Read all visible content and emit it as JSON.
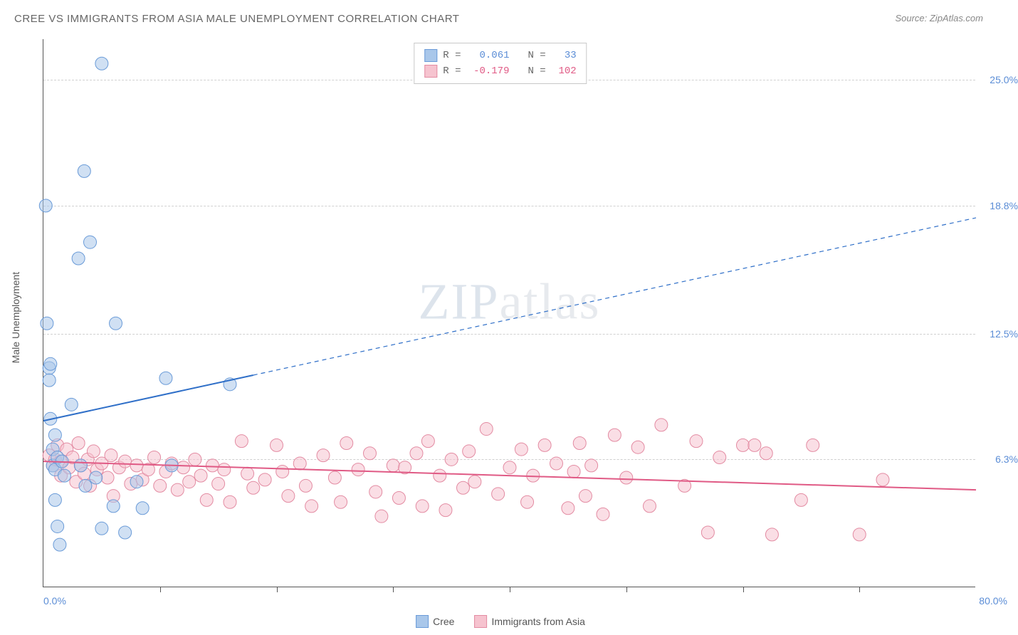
{
  "title": "CREE VS IMMIGRANTS FROM ASIA MALE UNEMPLOYMENT CORRELATION CHART",
  "source_prefix": "Source: ",
  "source_name": "ZipAtlas.com",
  "y_axis_title": "Male Unemployment",
  "watermark_zip": "ZIP",
  "watermark_atlas": "atlas",
  "colors": {
    "series_a_fill": "#a9c7ea",
    "series_a_stroke": "#6a9bd8",
    "series_a_line": "#2f6fc8",
    "series_b_fill": "#f6c3cf",
    "series_b_stroke": "#e38ba2",
    "series_b_line": "#e05a85",
    "axis_text_blue": "#5b8dd6",
    "axis_text_pink": "#e05a85",
    "grid": "#d8d8d8",
    "title_color": "#666666"
  },
  "stats": {
    "rows": [
      {
        "swatch_fill": "#a9c7ea",
        "swatch_stroke": "#6a9bd8",
        "r_label": "R =",
        "r_value": "0.061",
        "r_color": "#5b8dd6",
        "n_label": "N =",
        "n_value": "33",
        "n_color": "#5b8dd6"
      },
      {
        "swatch_fill": "#f6c3cf",
        "swatch_stroke": "#e38ba2",
        "r_label": "R =",
        "r_value": "-0.179",
        "r_color": "#e05a85",
        "n_label": "N =",
        "n_value": "102",
        "n_color": "#e05a85"
      }
    ]
  },
  "legend": {
    "items": [
      {
        "label": "Cree",
        "fill": "#a9c7ea",
        "stroke": "#6a9bd8"
      },
      {
        "label": "Immigrants from Asia",
        "fill": "#f6c3cf",
        "stroke": "#e38ba2"
      }
    ]
  },
  "chart": {
    "type": "scatter",
    "xlim": [
      0,
      80
    ],
    "ylim": [
      0,
      27
    ],
    "x_min_label": "0.0%",
    "x_max_label": "80.0%",
    "y_ticks": [
      {
        "value": 6.3,
        "label": "6.3%",
        "color": "#5b8dd6"
      },
      {
        "value": 12.5,
        "label": "12.5%",
        "color": "#5b8dd6"
      },
      {
        "value": 18.8,
        "label": "18.8%",
        "color": "#5b8dd6"
      },
      {
        "value": 25.0,
        "label": "25.0%",
        "color": "#5b8dd6"
      }
    ],
    "x_tick_positions": [
      10,
      20,
      30,
      40,
      50,
      60,
      70
    ],
    "marker_radius": 9,
    "marker_opacity": 0.55,
    "line_width": 2,
    "series_a": {
      "name": "Cree",
      "points": [
        [
          0.2,
          18.8
        ],
        [
          0.3,
          13.0
        ],
        [
          0.5,
          10.8
        ],
        [
          0.5,
          10.2
        ],
        [
          0.6,
          11.0
        ],
        [
          0.6,
          8.3
        ],
        [
          0.8,
          6.8
        ],
        [
          0.8,
          6.0
        ],
        [
          1.0,
          7.5
        ],
        [
          1.0,
          5.8
        ],
        [
          1.0,
          4.3
        ],
        [
          1.2,
          3.0
        ],
        [
          1.2,
          6.4
        ],
        [
          1.4,
          2.1
        ],
        [
          1.6,
          6.2
        ],
        [
          1.8,
          5.5
        ],
        [
          2.4,
          9.0
        ],
        [
          3.0,
          16.2
        ],
        [
          3.2,
          6.0
        ],
        [
          3.5,
          20.5
        ],
        [
          3.6,
          5.0
        ],
        [
          4.0,
          17.0
        ],
        [
          4.5,
          5.4
        ],
        [
          5.0,
          2.9
        ],
        [
          5.0,
          25.8
        ],
        [
          6.0,
          4.0
        ],
        [
          6.2,
          13.0
        ],
        [
          7.0,
          2.7
        ],
        [
          8.0,
          5.2
        ],
        [
          8.5,
          3.9
        ],
        [
          10.5,
          10.3
        ],
        [
          11.0,
          6.0
        ],
        [
          16.0,
          10.0
        ]
      ],
      "trend": {
        "x1": 0,
        "y1": 8.2,
        "x2": 80,
        "y2": 18.2,
        "solid_until_x": 18
      }
    },
    "series_b": {
      "name": "Immigrants from Asia",
      "points": [
        [
          0.5,
          6.5
        ],
        [
          0.8,
          6.0
        ],
        [
          1.0,
          6.3
        ],
        [
          1.2,
          7.0
        ],
        [
          1.5,
          6.2
        ],
        [
          1.5,
          5.5
        ],
        [
          2.0,
          6.8
        ],
        [
          2.2,
          5.9
        ],
        [
          2.5,
          6.4
        ],
        [
          2.8,
          5.2
        ],
        [
          3.0,
          7.1
        ],
        [
          3.2,
          6.0
        ],
        [
          3.5,
          5.6
        ],
        [
          3.8,
          6.3
        ],
        [
          4.0,
          5.0
        ],
        [
          4.3,
          6.7
        ],
        [
          4.6,
          5.8
        ],
        [
          5.0,
          6.1
        ],
        [
          5.5,
          5.4
        ],
        [
          5.8,
          6.5
        ],
        [
          6.0,
          4.5
        ],
        [
          6.5,
          5.9
        ],
        [
          7.0,
          6.2
        ],
        [
          7.5,
          5.1
        ],
        [
          8.0,
          6.0
        ],
        [
          8.5,
          5.3
        ],
        [
          9.0,
          5.8
        ],
        [
          9.5,
          6.4
        ],
        [
          10.0,
          5.0
        ],
        [
          10.5,
          5.7
        ],
        [
          11.0,
          6.1
        ],
        [
          11.5,
          4.8
        ],
        [
          12.0,
          5.9
        ],
        [
          12.5,
          5.2
        ],
        [
          13.0,
          6.3
        ],
        [
          13.5,
          5.5
        ],
        [
          14.0,
          4.3
        ],
        [
          14.5,
          6.0
        ],
        [
          15.0,
          5.1
        ],
        [
          15.5,
          5.8
        ],
        [
          16.0,
          4.2
        ],
        [
          17.0,
          7.2
        ],
        [
          17.5,
          5.6
        ],
        [
          18.0,
          4.9
        ],
        [
          19.0,
          5.3
        ],
        [
          20.0,
          7.0
        ],
        [
          20.5,
          5.7
        ],
        [
          21.0,
          4.5
        ],
        [
          22.0,
          6.1
        ],
        [
          22.5,
          5.0
        ],
        [
          23.0,
          4.0
        ],
        [
          24.0,
          6.5
        ],
        [
          25.0,
          5.4
        ],
        [
          25.5,
          4.2
        ],
        [
          26.0,
          7.1
        ],
        [
          27.0,
          5.8
        ],
        [
          28.0,
          6.6
        ],
        [
          28.5,
          4.7
        ],
        [
          29.0,
          3.5
        ],
        [
          30.0,
          6.0
        ],
        [
          30.5,
          4.4
        ],
        [
          31.0,
          5.9
        ],
        [
          32.0,
          6.6
        ],
        [
          32.5,
          4.0
        ],
        [
          33.0,
          7.2
        ],
        [
          34.0,
          5.5
        ],
        [
          34.5,
          3.8
        ],
        [
          35.0,
          6.3
        ],
        [
          36.0,
          4.9
        ],
        [
          36.5,
          6.7
        ],
        [
          37.0,
          5.2
        ],
        [
          38.0,
          7.8
        ],
        [
          39.0,
          4.6
        ],
        [
          40.0,
          5.9
        ],
        [
          41.0,
          6.8
        ],
        [
          41.5,
          4.2
        ],
        [
          42.0,
          5.5
        ],
        [
          43.0,
          7.0
        ],
        [
          44.0,
          6.1
        ],
        [
          45.0,
          3.9
        ],
        [
          45.5,
          5.7
        ],
        [
          46.0,
          7.1
        ],
        [
          46.5,
          4.5
        ],
        [
          47.0,
          6.0
        ],
        [
          48.0,
          3.6
        ],
        [
          49.0,
          7.5
        ],
        [
          50.0,
          5.4
        ],
        [
          51.0,
          6.9
        ],
        [
          52.0,
          4.0
        ],
        [
          53.0,
          8.0
        ],
        [
          55.0,
          5.0
        ],
        [
          56.0,
          7.2
        ],
        [
          57.0,
          2.7
        ],
        [
          58.0,
          6.4
        ],
        [
          60.0,
          7.0
        ],
        [
          61.0,
          7.0
        ],
        [
          62.0,
          6.6
        ],
        [
          62.5,
          2.6
        ],
        [
          65.0,
          4.3
        ],
        [
          66.0,
          7.0
        ],
        [
          70.0,
          2.6
        ],
        [
          72.0,
          5.3
        ]
      ],
      "trend": {
        "x1": 0,
        "y1": 6.2,
        "x2": 80,
        "y2": 4.8
      }
    }
  }
}
